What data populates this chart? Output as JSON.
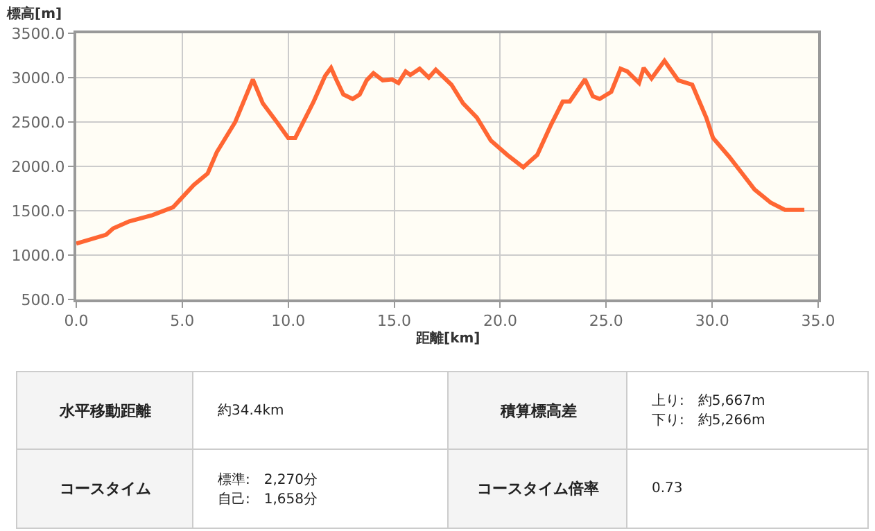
{
  "chart_data": [
    {
      "type": "line",
      "xlabel": "距離[km]",
      "ylabel": "標高[m]",
      "x": [
        0,
        1.41,
        1.74,
        2.5,
        3.59,
        4.57,
        5.54,
        6.2,
        6.63,
        7.5,
        8.33,
        8.8,
        9.46,
        10,
        10.33,
        11.2,
        11.74,
        12.02,
        12.28,
        12.6,
        13.04,
        13.37,
        13.7,
        14.02,
        14.46,
        14.9,
        15.2,
        15.54,
        15.76,
        16.2,
        16.63,
        16.96,
        17.7,
        18.25,
        18.9,
        19.56,
        20.33,
        21.09,
        21.75,
        22.4,
        22.95,
        23.28,
        24.0,
        24.37,
        24.69,
        25.24,
        25.68,
        26.0,
        26.55,
        26.77,
        27.14,
        27.75,
        28.4,
        29.06,
        29.72,
        30.04,
        30.8,
        32.0,
        32.77,
        33.43,
        34.35
      ],
      "series": [
        {
          "color": "#ff6633",
          "values": [
            1130,
            1230,
            1300,
            1380,
            1450,
            1540,
            1790,
            1920,
            2160,
            2500,
            2980,
            2710,
            2500,
            2320,
            2320,
            2730,
            3020,
            3110,
            2970,
            2810,
            2760,
            2810,
            2970,
            3050,
            2970,
            2980,
            2940,
            3070,
            3030,
            3100,
            3000,
            3090,
            2920,
            2710,
            2550,
            2290,
            2130,
            1990,
            2130,
            2470,
            2730,
            2730,
            2980,
            2790,
            2760,
            2840,
            3100,
            3070,
            2940,
            3110,
            2990,
            3190,
            2970,
            2920,
            2550,
            2320,
            2110,
            1740,
            1590,
            1510,
            1510
          ]
        }
      ],
      "xlim": [
        0,
        35
      ],
      "xticks": [
        {
          "value": 0,
          "label": "0.0"
        },
        {
          "value": 5,
          "label": "5.0"
        },
        {
          "value": 10,
          "label": "10.0"
        },
        {
          "value": 15,
          "label": "15.0"
        },
        {
          "value": 20,
          "label": "20.0"
        },
        {
          "value": 25,
          "label": "25.0"
        },
        {
          "value": 30,
          "label": "30.0"
        },
        {
          "value": 35,
          "label": "35.0"
        }
      ],
      "ylim": [
        500,
        3500
      ],
      "yticks": [
        {
          "value": 500,
          "label": "500.0"
        },
        {
          "value": 1000,
          "label": "1000.0"
        },
        {
          "value": 1500,
          "label": "1500.0"
        },
        {
          "value": 2000,
          "label": "2000.0"
        },
        {
          "value": 2500,
          "label": "2500.0"
        },
        {
          "value": 3000,
          "label": "3000.0"
        },
        {
          "value": 3500,
          "label": "3500.0"
        }
      ],
      "grid": true,
      "legend": false,
      "marker": "none",
      "line_style": "solid"
    },
    {
      "type": "other",
      "annotations": [
        "水平移動距離",
        "約34.4km",
        "積算標高差",
        [
          "上り:　約5,667m",
          "下り:　約5,266m"
        ],
        "コースタイム",
        [
          "標準:　2,270分",
          "自己:　1,658分"
        ],
        "コースタイム倍率",
        "0.73"
      ]
    }
  ]
}
